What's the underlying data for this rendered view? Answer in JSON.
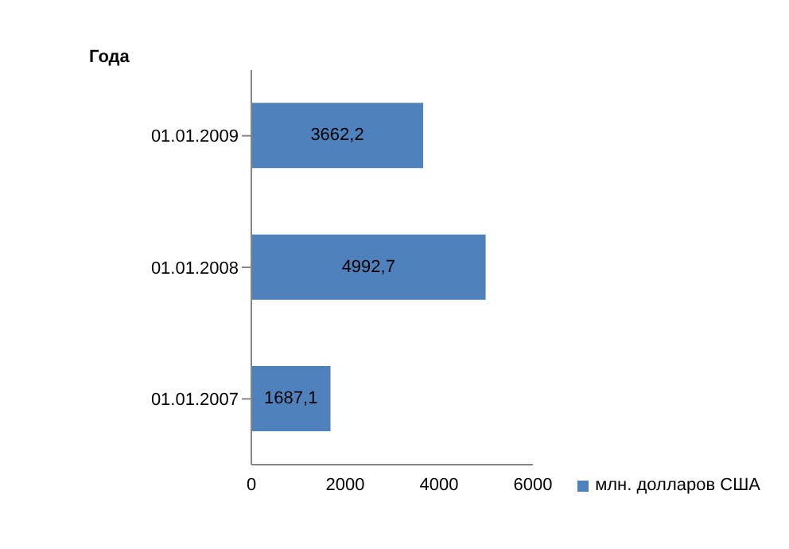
{
  "chart_data": {
    "type": "bar",
    "orientation": "horizontal",
    "ylabel": "Года",
    "categories": [
      "01.01.2009",
      "01.01.2008",
      "01.01.2007"
    ],
    "series": [
      {
        "name": "млн. долларов США",
        "color": "#4f81bd",
        "values": [
          3662.2,
          4992.7,
          1687.1
        ],
        "value_labels": [
          "3662,2",
          "4992,7",
          "1687,1"
        ]
      }
    ],
    "xlim": [
      0,
      6000
    ],
    "xticks": [
      0,
      2000,
      4000,
      6000
    ],
    "legend": "right"
  }
}
